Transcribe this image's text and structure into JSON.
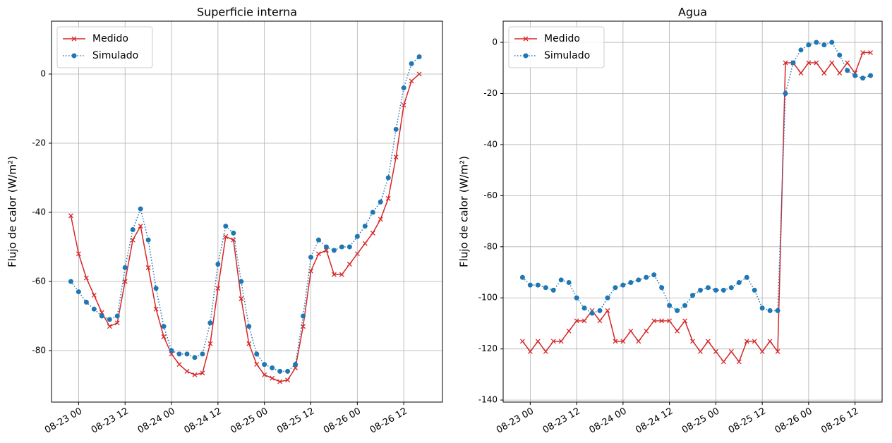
{
  "chart_data": [
    {
      "type": "line",
      "title": "Superficie interna",
      "ylabel": "Flujo de calor (W/m²)",
      "x": [
        "08-22 22",
        "08-23 00",
        "08-23 02",
        "08-23 04",
        "08-23 06",
        "08-23 08",
        "08-23 10",
        "08-23 12",
        "08-23 14",
        "08-23 16",
        "08-23 18",
        "08-23 20",
        "08-23 22",
        "08-24 00",
        "08-24 02",
        "08-24 04",
        "08-24 06",
        "08-24 08",
        "08-24 10",
        "08-24 12",
        "08-24 14",
        "08-24 16",
        "08-24 18",
        "08-24 20",
        "08-24 22",
        "08-25 00",
        "08-25 02",
        "08-25 04",
        "08-25 06",
        "08-25 08",
        "08-25 10",
        "08-25 12",
        "08-25 14",
        "08-25 16",
        "08-25 18",
        "08-25 20",
        "08-25 22",
        "08-26 00",
        "08-26 02",
        "08-26 04",
        "08-26 06",
        "08-26 08",
        "08-26 10",
        "08-26 12",
        "08-26 14",
        "08-26 16"
      ],
      "xlim": [
        "08-22 17",
        "08-26 22"
      ],
      "xticks": [
        "08-23 00",
        "08-23 12",
        "08-24 00",
        "08-24 12",
        "08-25 00",
        "08-25 12",
        "08-26 00",
        "08-26 12"
      ],
      "ylim": [
        -94.9,
        15.3
      ],
      "yticks": [
        -80,
        -60,
        -40,
        -20,
        0
      ],
      "grid": true,
      "legend": "upper left",
      "series": [
        {
          "name": "Medido",
          "color": "#d62728",
          "marker": "x",
          "linestyle": "solid",
          "values": [
            -41,
            -52,
            -59,
            -64,
            -69,
            -73,
            -72,
            -60,
            -48,
            -44,
            -56,
            -68,
            -76,
            -81,
            -84,
            -86,
            -87,
            -86.5,
            -78,
            -62,
            -47,
            -48,
            -65,
            -78,
            -84,
            -87,
            -88,
            -89,
            -88.5,
            -85,
            -73,
            -57,
            -52,
            -51,
            -58,
            -58,
            -55,
            -52,
            -49,
            -46,
            -42,
            -36,
            -24,
            -9,
            -2,
            0
          ]
        },
        {
          "name": "Simulado",
          "color": "#1f77b4",
          "marker": "o",
          "linestyle": "dotted",
          "values": [
            -60,
            -63,
            -66,
            -68,
            -70,
            -71,
            -70,
            -56,
            -45,
            -39,
            -48,
            -62,
            -73,
            -80,
            -81,
            -81,
            -82,
            -81,
            -72,
            -55,
            -44,
            -46,
            -60,
            -73,
            -81,
            -84,
            -85,
            -86,
            -86,
            -84,
            -70,
            -53,
            -48,
            -50,
            -51,
            -50,
            -50,
            -47,
            -44,
            -40,
            -37,
            -30,
            -16,
            -4,
            3,
            5
          ]
        }
      ]
    },
    {
      "type": "line",
      "title": "Agua",
      "ylabel": "Flujo de calor (W/m²)",
      "x": [
        "08-22 22",
        "08-23 00",
        "08-23 02",
        "08-23 04",
        "08-23 06",
        "08-23 08",
        "08-23 10",
        "08-23 12",
        "08-23 14",
        "08-23 16",
        "08-23 18",
        "08-23 20",
        "08-23 22",
        "08-24 00",
        "08-24 02",
        "08-24 04",
        "08-24 06",
        "08-24 08",
        "08-24 10",
        "08-24 12",
        "08-24 14",
        "08-24 16",
        "08-24 18",
        "08-24 20",
        "08-24 22",
        "08-25 00",
        "08-25 02",
        "08-25 04",
        "08-25 06",
        "08-25 08",
        "08-25 10",
        "08-25 12",
        "08-25 14",
        "08-25 16",
        "08-25 18",
        "08-25 20",
        "08-25 22",
        "08-26 00",
        "08-26 02",
        "08-26 04",
        "08-26 06",
        "08-26 08",
        "08-26 10",
        "08-26 12",
        "08-26 14",
        "08-26 16"
      ],
      "xlim": [
        "08-22 17",
        "08-26 19"
      ],
      "xticks": [
        "08-23 00",
        "08-23 12",
        "08-24 00",
        "08-24 12",
        "08-25 00",
        "08-25 12",
        "08-26 00",
        "08-26 12"
      ],
      "ylim": [
        -140.8,
        8.3
      ],
      "yticks": [
        -140,
        -120,
        -100,
        -80,
        -60,
        -40,
        -20,
        0
      ],
      "grid": true,
      "legend": "upper left",
      "series": [
        {
          "name": "Medido",
          "color": "#d62728",
          "marker": "x",
          "linestyle": "solid",
          "values": [
            -117,
            -121,
            -117,
            -121,
            -117,
            -117,
            -113,
            -109,
            -109,
            -105,
            -109,
            -105,
            -117,
            -117,
            -113,
            -117,
            -113,
            -109,
            -109,
            -109,
            -113,
            -109,
            -117,
            -121,
            -117,
            -121,
            -125,
            -121,
            -125,
            -117,
            -117,
            -121,
            -117,
            -121,
            -8,
            -8,
            -12,
            -8,
            -8,
            -12,
            -8,
            -12,
            -8,
            -12,
            -4,
            -4
          ]
        },
        {
          "name": "Simulado",
          "color": "#1f77b4",
          "marker": "o",
          "linestyle": "dotted",
          "values": [
            -92,
            -95,
            -95,
            -96,
            -97,
            -93,
            -94,
            -100,
            -104,
            -106,
            -105,
            -100,
            -96,
            -95,
            -94,
            -93,
            -92,
            -91,
            -96,
            -103,
            -105,
            -103,
            -99,
            -97,
            -96,
            -97,
            -97,
            -96,
            -94,
            -92,
            -97,
            -104,
            -105,
            -105,
            -20,
            -8,
            -3,
            -1,
            0,
            -1,
            0,
            -5,
            -11,
            -13,
            -14,
            -13
          ]
        }
      ]
    }
  ]
}
